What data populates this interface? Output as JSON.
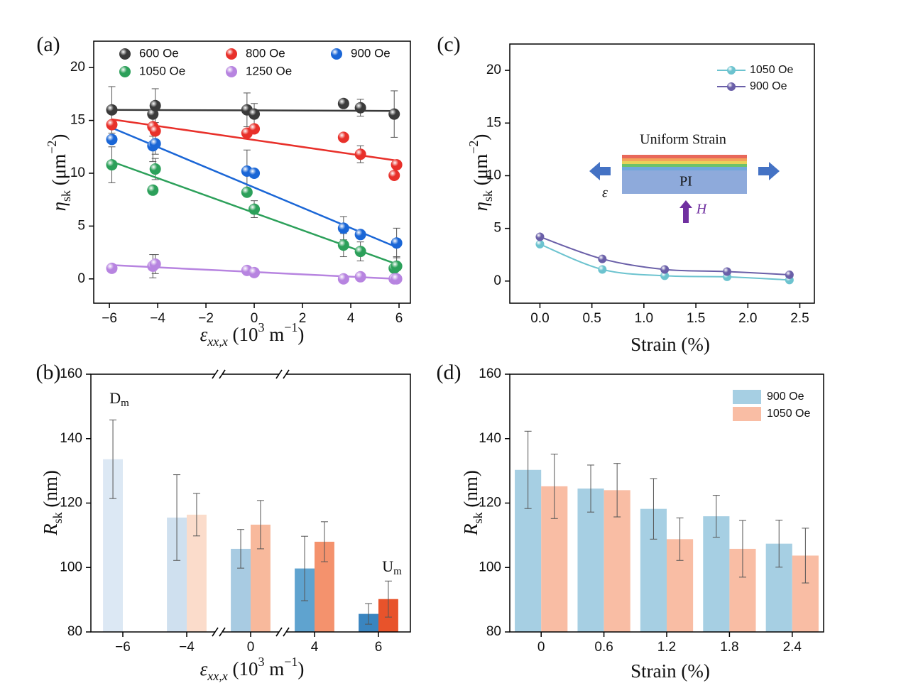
{
  "chart_data": [
    {
      "panel_label": "(a)",
      "type": "scatter",
      "x_label": [
        "ε",
        "xx,x",
        " (10",
        "3",
        " m",
        "−1",
        ")"
      ],
      "y_label": [
        "η",
        "sk",
        " (μm",
        "−2",
        ")"
      ],
      "xlim": [
        -6.65,
        6.47
      ],
      "ylim": [
        -2.3,
        22.5
      ],
      "xticks": [
        {
          "value": -6,
          "label": "−6"
        },
        {
          "value": -4,
          "label": "−4"
        },
        {
          "value": -2,
          "label": "−2"
        },
        0,
        2,
        4,
        6
      ],
      "yticks": [
        0,
        5,
        10,
        15,
        20
      ],
      "series": [
        {
          "name": "600 Oe",
          "color": "#3a3a3a",
          "x": [
            -5.9,
            -4.2,
            -4.1,
            -0.3,
            0,
            3.7,
            4.4,
            5.8
          ],
          "values": [
            16.0,
            15.6,
            16.4,
            16.0,
            15.6,
            16.6,
            16.2,
            15.6
          ],
          "errors": [
            2.2,
            null,
            1.6,
            1.6,
            1.0,
            null,
            0.8,
            2.2
          ],
          "fit_x": [
            -5.9,
            5.9
          ],
          "fit_y": [
            16.0,
            15.9
          ]
        },
        {
          "name": "800 Oe",
          "color": "#e8302a",
          "x": [
            -5.9,
            -4.2,
            -4.1,
            -0.3,
            0,
            3.7,
            4.4,
            5.8,
            5.9
          ],
          "values": [
            14.6,
            14.4,
            14.0,
            13.8,
            14.2,
            13.4,
            11.8,
            9.8,
            10.8
          ],
          "errors": [
            null,
            0.9,
            null,
            null,
            null,
            null,
            0.8,
            null,
            null
          ],
          "fit_x": [
            -5.9,
            5.9
          ],
          "fit_y": [
            15.1,
            11.2
          ]
        },
        {
          "name": "900 Oe",
          "color": "#1a66d6",
          "x": [
            -5.9,
            -4.2,
            -4.1,
            -0.3,
            0,
            3.7,
            4.4,
            5.9
          ],
          "values": [
            13.2,
            12.6,
            12.8,
            10.2,
            10.0,
            4.8,
            4.2,
            3.4
          ],
          "errors": [
            null,
            1.5,
            1.0,
            2.0,
            null,
            1.1,
            null,
            1.4
          ],
          "fit_x": [
            -5.9,
            5.9
          ],
          "fit_y": [
            14.3,
            3.0
          ]
        },
        {
          "name": "1050 Oe",
          "color": "#2ca05a",
          "x": [
            -5.9,
            -4.2,
            -4.1,
            -0.3,
            0,
            3.7,
            4.4,
            5.8,
            5.9
          ],
          "values": [
            10.8,
            8.4,
            10.4,
            8.2,
            6.6,
            3.2,
            2.6,
            1.0,
            1.2
          ],
          "errors": [
            1.7,
            null,
            1.0,
            null,
            0.8,
            1.1,
            0.9,
            null,
            0.9
          ],
          "fit_x": [
            -5.9,
            5.9
          ],
          "fit_y": [
            11.1,
            1.4
          ]
        },
        {
          "name": "1250 Oe",
          "color": "#b784e0",
          "x": [
            -5.9,
            -4.2,
            -4.1,
            -0.3,
            0,
            3.7,
            4.4,
            5.8,
            5.9
          ],
          "values": [
            1.0,
            1.2,
            1.4,
            0.8,
            0.6,
            0.0,
            0.2,
            0.0,
            0.0
          ],
          "errors": [
            null,
            1.1,
            0.9,
            null,
            null,
            null,
            null,
            null,
            null
          ],
          "fit_x": [
            -5.9,
            5.9
          ],
          "fit_y": [
            1.3,
            0.0
          ]
        }
      ]
    },
    {
      "panel_label": "(b)",
      "type": "bar",
      "axis_break": true,
      "categories": [
        "−6",
        "−4",
        "0",
        "4",
        "6"
      ],
      "x_label": [
        "ε",
        "xx,x",
        " (10",
        "3",
        " m",
        "−1",
        ")"
      ],
      "y_label": [
        "R",
        "sk",
        " (nm)"
      ],
      "ylim": [
        80,
        160
      ],
      "yticks": [
        80,
        100,
        120,
        140,
        160
      ],
      "series": [
        {
          "colors": [
            "#dce8f4",
            "#cfe0ef",
            "#a8cbe2",
            "#5fa3cf",
            "#3a85c0"
          ],
          "values": [
            133.6,
            115.5,
            105.8,
            99.7,
            85.6
          ],
          "errors": [
            12.2,
            13.3,
            6.0,
            10.0,
            3.2
          ]
        },
        {
          "colors": [
            null,
            "#fbdccb",
            "#f8b99c",
            "#f4926d",
            "#e8532b"
          ],
          "values": [
            null,
            116.4,
            113.3,
            108.0,
            90.2
          ],
          "errors": [
            null,
            6.6,
            7.5,
            6.2,
            5.6
          ]
        }
      ],
      "annotations": [
        {
          "text": "D",
          "sub": "m"
        },
        {
          "text": "U",
          "sub": "m"
        }
      ]
    },
    {
      "panel_label": "(c)",
      "type": "line",
      "x": [
        0,
        0.6,
        1.2,
        1.8,
        2.4
      ],
      "x_label": "Strain (%)",
      "y_label": [
        "η",
        "sk",
        " (μm",
        "−2",
        ")"
      ],
      "xlim": [
        -0.29,
        2.64
      ],
      "ylim": [
        -2.1,
        22.5
      ],
      "xticks": [
        {
          "value": 0,
          "label": "0.0"
        },
        0.5,
        {
          "value": 1,
          "label": "1.0"
        },
        1.5,
        {
          "value": 2,
          "label": "2.0"
        },
        2.5
      ],
      "yticks": [
        0,
        5,
        10,
        15,
        20
      ],
      "series": [
        {
          "name": "1050 Oe",
          "color": "#6cc3cf",
          "values": [
            3.5,
            1.1,
            0.5,
            0.4,
            0.1
          ]
        },
        {
          "name": "900 Oe",
          "color": "#6a5fa8",
          "values": [
            4.2,
            2.1,
            1.1,
            0.9,
            0.6
          ]
        }
      ],
      "inset": {
        "title": "Uniform Strain",
        "substrate": "PI",
        "strain_symbol": "ε",
        "field_symbol": "H"
      }
    },
    {
      "panel_label": "(d)",
      "type": "bar",
      "categories": [
        "0",
        "0.6",
        "1.2",
        "1.8",
        "2.4"
      ],
      "x_label": "Strain (%)",
      "y_label": [
        "R",
        "sk",
        " (nm)"
      ],
      "ylim": [
        80,
        160
      ],
      "yticks": [
        80,
        100,
        120,
        140,
        160
      ],
      "series": [
        {
          "name": "900 Oe",
          "color": "#a6cfe3",
          "values": [
            130.3,
            124.5,
            118.2,
            115.9,
            107.4
          ],
          "errors": [
            12.0,
            7.3,
            9.4,
            6.5,
            7.3
          ]
        },
        {
          "name": "1050 Oe",
          "color": "#f9bda4",
          "values": [
            125.2,
            124.0,
            108.8,
            105.8,
            103.7
          ],
          "errors": [
            10.0,
            8.3,
            6.6,
            8.8,
            8.5
          ]
        }
      ]
    }
  ]
}
